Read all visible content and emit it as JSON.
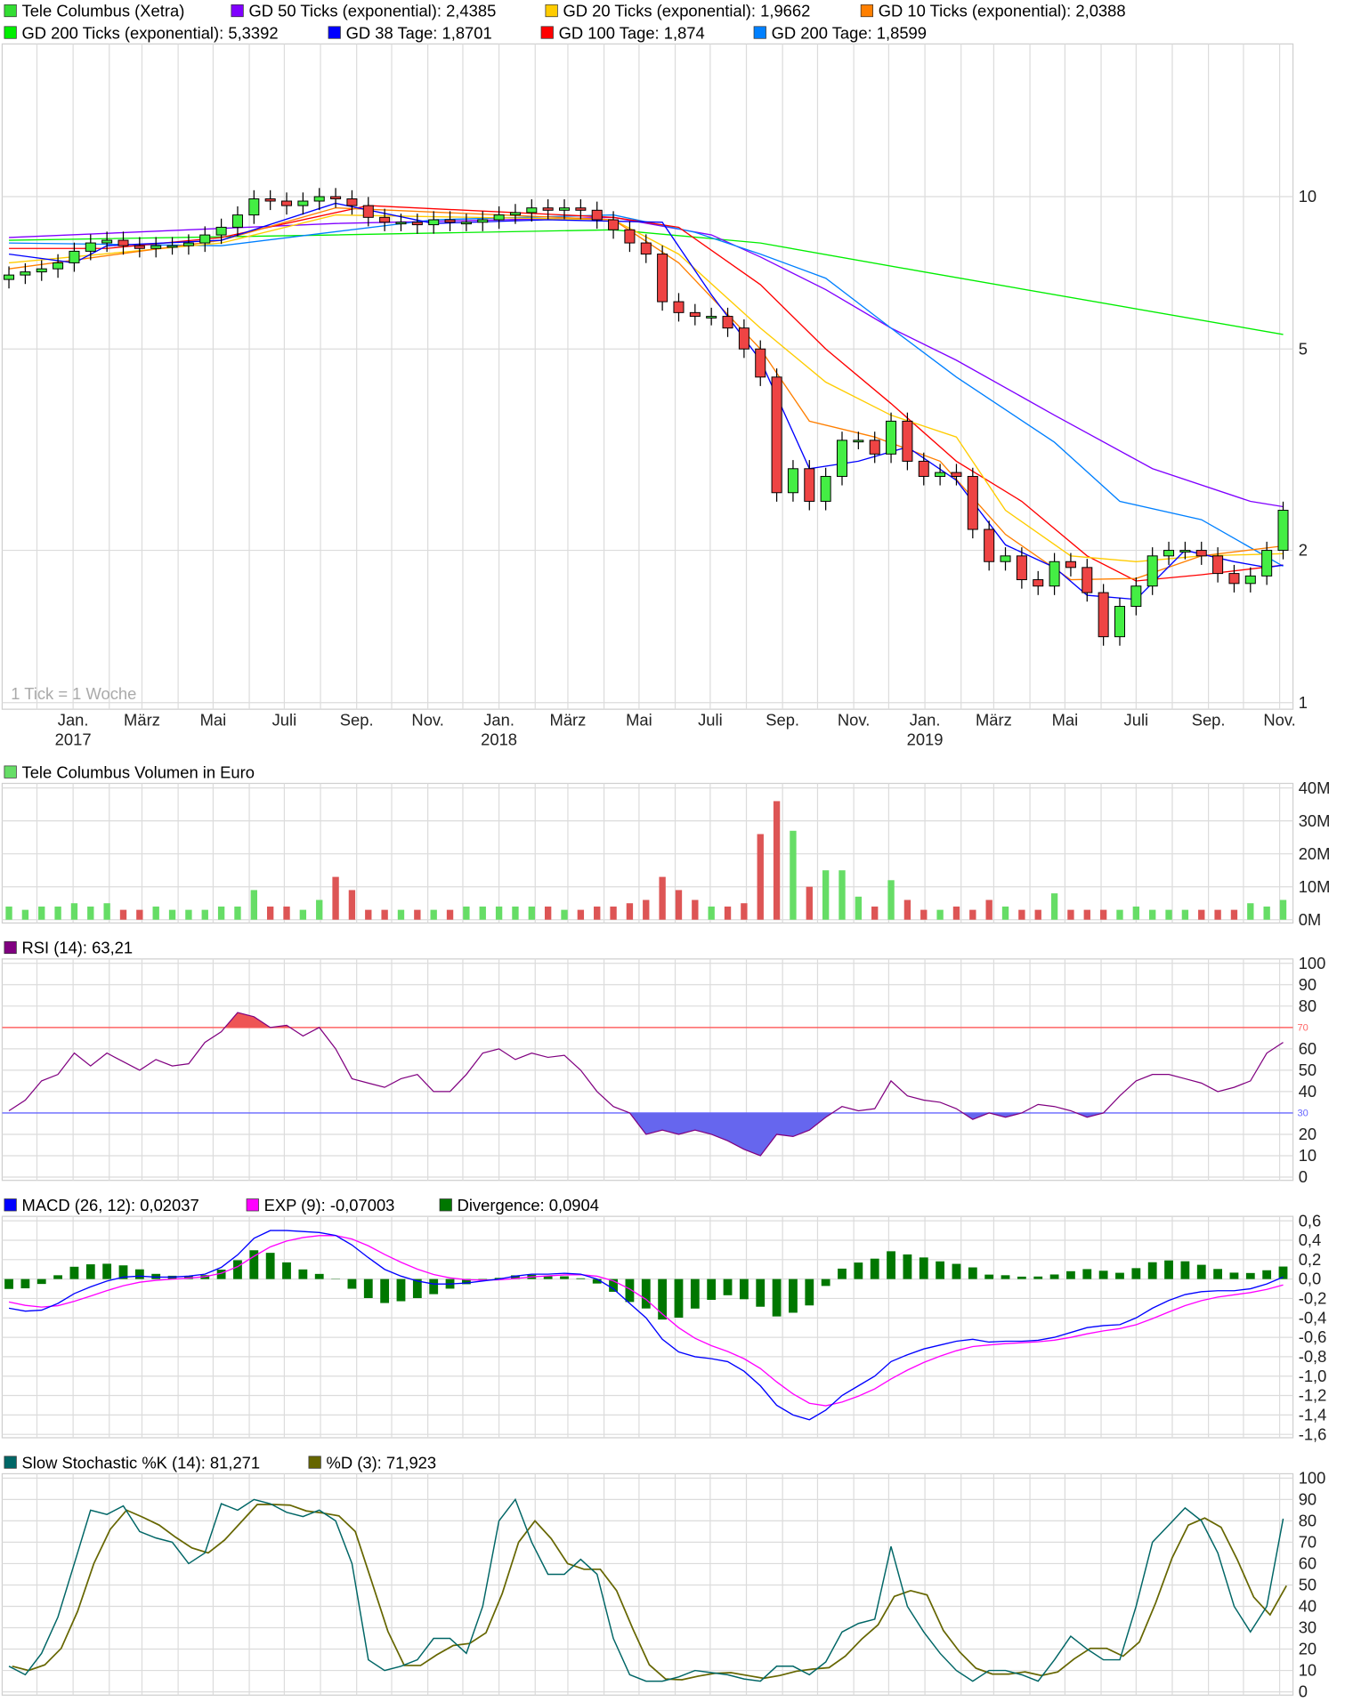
{
  "main_legend": [
    {
      "label": "Tele Columbus (Xetra)",
      "color": "#33dd33"
    },
    {
      "label": "GD 50 Ticks (exponential): 2,4385",
      "color": "#8000ff"
    },
    {
      "label": "GD 20 Ticks (exponential): 1,9662",
      "color": "#ffcc00"
    },
    {
      "label": "GD 10 Ticks (exponential): 2,0388",
      "color": "#ff7f00"
    },
    {
      "label": "GD 200 Ticks (exponential): 5,3392",
      "color": "#00ee00"
    },
    {
      "label": "GD 38 Tage: 1,8701",
      "color": "#0000ff"
    },
    {
      "label": "GD 100 Tage: 1,874",
      "color": "#ff0000"
    },
    {
      "label": "GD 200 Tage: 1,8599",
      "color": "#0080ff"
    }
  ],
  "watermark": "1 Tick = 1 Woche",
  "price_axis": {
    "scale": "log",
    "ticks": [
      "10",
      "5",
      "2",
      "1"
    ],
    "tick_values": [
      10,
      5,
      2,
      1
    ],
    "range": [
      1,
      20
    ]
  },
  "x_axis": {
    "labels": [
      {
        "date": "2017-01-01",
        "label": "Jan.",
        "year": "2017"
      },
      {
        "date": "2017-03-01",
        "label": "März"
      },
      {
        "date": "2017-05-01",
        "label": "Mai"
      },
      {
        "date": "2017-07-01",
        "label": "Juli"
      },
      {
        "date": "2017-09-01",
        "label": "Sep."
      },
      {
        "date": "2017-11-01",
        "label": "Nov."
      },
      {
        "date": "2018-01-01",
        "label": "Jan.",
        "year": "2018"
      },
      {
        "date": "2018-03-01",
        "label": "März"
      },
      {
        "date": "2018-05-01",
        "label": "Mai"
      },
      {
        "date": "2018-07-01",
        "label": "Juli"
      },
      {
        "date": "2018-09-01",
        "label": "Sep."
      },
      {
        "date": "2018-11-01",
        "label": "Nov."
      },
      {
        "date": "2019-01-01",
        "label": "Jan.",
        "year": "2019"
      },
      {
        "date": "2019-03-01",
        "label": "März"
      },
      {
        "date": "2019-05-01",
        "label": "Mai"
      },
      {
        "date": "2019-07-01",
        "label": "Juli"
      },
      {
        "date": "2019-09-01",
        "label": "Sep."
      },
      {
        "date": "2019-11-01",
        "label": "Nov."
      }
    ]
  },
  "chart_data": {
    "type": "candlestick",
    "up_color": "#44ee44",
    "down_color": "#ee4444",
    "dates": [
      "2016-11-07",
      "2016-11-21",
      "2016-12-05",
      "2016-12-19",
      "2017-01-02",
      "2017-01-16",
      "2017-01-30",
      "2017-02-13",
      "2017-02-27",
      "2017-03-13",
      "2017-03-27",
      "2017-04-10",
      "2017-04-24",
      "2017-05-08",
      "2017-05-22",
      "2017-06-05",
      "2017-06-19",
      "2017-07-03",
      "2017-07-17",
      "2017-07-31",
      "2017-08-14",
      "2017-08-28",
      "2017-09-11",
      "2017-09-25",
      "2017-10-09",
      "2017-10-23",
      "2017-11-06",
      "2017-11-20",
      "2017-12-04",
      "2017-12-18",
      "2018-01-01",
      "2018-01-15",
      "2018-01-29",
      "2018-02-12",
      "2018-02-26",
      "2018-03-12",
      "2018-03-26",
      "2018-04-09",
      "2018-04-23",
      "2018-05-07",
      "2018-05-21",
      "2018-06-04",
      "2018-06-18",
      "2018-07-02",
      "2018-07-16",
      "2018-07-30",
      "2018-08-13",
      "2018-08-27",
      "2018-09-10",
      "2018-09-24",
      "2018-10-08",
      "2018-10-22",
      "2018-11-05",
      "2018-11-19",
      "2018-12-03",
      "2018-12-17",
      "2018-12-31",
      "2019-01-14",
      "2019-01-28",
      "2019-02-11",
      "2019-02-25",
      "2019-03-11",
      "2019-03-25",
      "2019-04-08",
      "2019-04-22",
      "2019-05-06",
      "2019-05-20",
      "2019-06-03",
      "2019-06-17",
      "2019-07-01",
      "2019-07-15",
      "2019-07-29",
      "2019-08-12",
      "2019-08-26",
      "2019-09-09",
      "2019-09-23",
      "2019-10-07",
      "2019-10-21",
      "2019-11-04"
    ],
    "close": [
      7.0,
      7.1,
      7.2,
      7.4,
      7.8,
      8.1,
      8.2,
      8.0,
      7.9,
      8.0,
      8.0,
      8.1,
      8.4,
      8.7,
      9.2,
      9.9,
      9.8,
      9.6,
      9.8,
      10.0,
      9.9,
      9.6,
      9.1,
      8.9,
      8.9,
      8.8,
      9.0,
      8.9,
      8.9,
      9.0,
      9.2,
      9.3,
      9.5,
      9.4,
      9.5,
      9.4,
      9.0,
      8.6,
      8.1,
      7.7,
      6.2,
      5.9,
      5.8,
      5.8,
      5.5,
      5.0,
      4.4,
      2.6,
      2.9,
      2.5,
      2.8,
      3.3,
      3.3,
      3.1,
      3.6,
      3.0,
      2.8,
      2.85,
      2.8,
      2.2,
      1.9,
      1.95,
      1.75,
      1.7,
      1.9,
      1.85,
      1.65,
      1.35,
      1.55,
      1.7,
      1.95,
      2.0,
      2.0,
      1.95,
      1.8,
      1.72,
      1.78,
      2.0,
      2.4
    ],
    "moving_averages": [
      {
        "name": "GD 200 Ticks (exponential)",
        "color": "#00ee00",
        "points": [
          [
            "2016-11-07",
            8.2
          ],
          [
            "2017-08-14",
            8.4
          ],
          [
            "2018-04-09",
            8.6
          ],
          [
            "2018-08-13",
            8.1
          ],
          [
            "2018-12-31",
            7.1
          ],
          [
            "2019-11-04",
            5.34
          ]
        ]
      },
      {
        "name": "GD 50 Ticks (exponential)",
        "color": "#8000ff",
        "points": [
          [
            "2016-11-07",
            8.3
          ],
          [
            "2017-08-14",
            8.85
          ],
          [
            "2018-04-09",
            9.1
          ],
          [
            "2018-07-02",
            8.4
          ],
          [
            "2018-08-13",
            7.6
          ],
          [
            "2018-10-08",
            6.55
          ],
          [
            "2018-12-03",
            5.5
          ],
          [
            "2019-01-28",
            4.75
          ],
          [
            "2019-04-22",
            3.7
          ],
          [
            "2019-07-15",
            2.9
          ],
          [
            "2019-10-07",
            2.5
          ],
          [
            "2019-11-04",
            2.44
          ]
        ]
      },
      {
        "name": "GD 200 Tage",
        "color": "#0080ff",
        "points": [
          [
            "2016-11-07",
            8.1
          ],
          [
            "2017-05-08",
            8.0
          ],
          [
            "2017-11-06",
            9.0
          ],
          [
            "2018-04-09",
            9.2
          ],
          [
            "2018-06-18",
            8.5
          ],
          [
            "2018-08-13",
            7.7
          ],
          [
            "2018-10-08",
            6.9
          ],
          [
            "2018-12-03",
            5.5
          ],
          [
            "2019-01-28",
            4.4
          ],
          [
            "2019-04-22",
            3.27
          ],
          [
            "2019-06-17",
            2.5
          ],
          [
            "2019-08-26",
            2.3
          ],
          [
            "2019-11-04",
            1.86
          ]
        ]
      },
      {
        "name": "GD 100 Tage",
        "color": "#ff0000",
        "points": [
          [
            "2016-11-07",
            7.9
          ],
          [
            "2017-01-30",
            7.9
          ],
          [
            "2017-05-08",
            8.3
          ],
          [
            "2017-09-11",
            9.6
          ],
          [
            "2018-04-09",
            9.1
          ],
          [
            "2018-06-04",
            8.7
          ],
          [
            "2018-08-13",
            6.7
          ],
          [
            "2018-10-08",
            5.0
          ],
          [
            "2018-12-03",
            3.9
          ],
          [
            "2019-01-28",
            3.0
          ],
          [
            "2019-03-25",
            2.5
          ],
          [
            "2019-05-20",
            1.95
          ],
          [
            "2019-07-01",
            1.74
          ],
          [
            "2019-08-26",
            1.79
          ],
          [
            "2019-11-04",
            1.87
          ]
        ]
      },
      {
        "name": "GD 20 Ticks (exponential)",
        "color": "#ffcc00",
        "points": [
          [
            "2016-11-07",
            7.4
          ],
          [
            "2017-05-08",
            8.1
          ],
          [
            "2017-08-14",
            9.2
          ],
          [
            "2018-04-09",
            9.0
          ],
          [
            "2018-06-04",
            7.7
          ],
          [
            "2018-08-13",
            5.5
          ],
          [
            "2018-10-08",
            4.3
          ],
          [
            "2018-12-03",
            3.7
          ],
          [
            "2019-01-28",
            3.35
          ],
          [
            "2019-03-11",
            2.4
          ],
          [
            "2019-05-06",
            1.95
          ],
          [
            "2019-07-01",
            1.9
          ],
          [
            "2019-08-26",
            1.95
          ],
          [
            "2019-11-04",
            1.97
          ]
        ]
      },
      {
        "name": "GD 10 Ticks (exponential)",
        "color": "#ff7f00",
        "points": [
          [
            "2016-11-07",
            7.2
          ],
          [
            "2017-05-08",
            8.2
          ],
          [
            "2017-08-14",
            9.5
          ],
          [
            "2018-04-09",
            9.0
          ],
          [
            "2018-06-04",
            7.4
          ],
          [
            "2018-08-13",
            5.0
          ],
          [
            "2018-09-24",
            3.6
          ],
          [
            "2018-11-19",
            3.35
          ],
          [
            "2019-01-14",
            3.0
          ],
          [
            "2019-03-11",
            2.15
          ],
          [
            "2019-05-06",
            1.75
          ],
          [
            "2019-07-01",
            1.76
          ],
          [
            "2019-08-26",
            1.95
          ],
          [
            "2019-11-04",
            2.04
          ]
        ]
      },
      {
        "name": "GD 38 Tage",
        "color": "#0000ff",
        "points": [
          [
            "2016-11-07",
            7.7
          ],
          [
            "2017-01-02",
            7.4
          ],
          [
            "2017-01-30",
            8.0
          ],
          [
            "2017-05-08",
            8.2
          ],
          [
            "2017-08-14",
            9.7
          ],
          [
            "2017-11-06",
            8.85
          ],
          [
            "2018-02-12",
            9.0
          ],
          [
            "2018-05-21",
            8.9
          ],
          [
            "2018-07-02",
            6.4
          ],
          [
            "2018-08-13",
            4.75
          ],
          [
            "2018-09-24",
            2.9
          ],
          [
            "2018-11-05",
            3.0
          ],
          [
            "2018-12-17",
            3.2
          ],
          [
            "2019-01-28",
            2.75
          ],
          [
            "2019-03-11",
            2.05
          ],
          [
            "2019-04-22",
            1.85
          ],
          [
            "2019-05-20",
            1.63
          ],
          [
            "2019-07-01",
            1.6
          ],
          [
            "2019-08-12",
            2.0
          ],
          [
            "2019-09-23",
            1.9
          ],
          [
            "2019-10-21",
            1.85
          ],
          [
            "2019-11-04",
            1.87
          ]
        ]
      }
    ],
    "volume": {
      "title": "Tele Columbus Volumen in Euro",
      "color": "#66dd66",
      "ticks": [
        "40M",
        "30M",
        "20M",
        "10M",
        "0M"
      ],
      "unit": "M",
      "range": [
        0,
        40
      ],
      "values": [
        4,
        3,
        4,
        4,
        5,
        4,
        5,
        3,
        3,
        4,
        3,
        3,
        3,
        4,
        4,
        9,
        4,
        4,
        3,
        6,
        13,
        9,
        3,
        3,
        3,
        3,
        3,
        3,
        4,
        4,
        4,
        4,
        4,
        4,
        3,
        3,
        4,
        4,
        5,
        6,
        13,
        9,
        6,
        4,
        4,
        5,
        26,
        36,
        27,
        10,
        15,
        15,
        7,
        4,
        12,
        6,
        3,
        3,
        4,
        3,
        6,
        4,
        3,
        3,
        8,
        3,
        3,
        3,
        3,
        4,
        3,
        3,
        3,
        3,
        3,
        3,
        5,
        4,
        6
      ]
    },
    "rsi": {
      "title": "RSI (14): 63,21",
      "color": "#800080",
      "ticks": [
        "100",
        "90",
        "80",
        "60",
        "50",
        "40",
        "20",
        "10",
        "0"
      ],
      "tick_values": [
        100,
        90,
        80,
        60,
        50,
        40,
        20,
        10,
        0
      ],
      "upper": {
        "value": 70,
        "label": "70",
        "color": "#ff6666"
      },
      "lower": {
        "value": 30,
        "label": "30",
        "color": "#6666ff"
      },
      "values": [
        31,
        36,
        45,
        48,
        58,
        52,
        58,
        54,
        50,
        55,
        52,
        53,
        63,
        68,
        77,
        75,
        70,
        71,
        66,
        70,
        60,
        46,
        44,
        42,
        46,
        48,
        40,
        40,
        48,
        58,
        60,
        55,
        58,
        56,
        57,
        50,
        40,
        33,
        30,
        20,
        22,
        20,
        22,
        20,
        17,
        13,
        10,
        20,
        19,
        22,
        28,
        33,
        31,
        32,
        45,
        38,
        36,
        35,
        32,
        27,
        30,
        28,
        30,
        34,
        33,
        31,
        28,
        30,
        38,
        45,
        48,
        48,
        46,
        44,
        40,
        42,
        45,
        58,
        63
      ]
    },
    "macd": {
      "legend": [
        {
          "label": "MACD (26, 12): 0,02037",
          "color": "#0000ff"
        },
        {
          "label": "EXP (9): -0,07003",
          "color": "#ff00ff"
        },
        {
          "label": "Divergence: 0,0904",
          "color": "#007700"
        }
      ],
      "ticks": [
        "0,6",
        "0,4",
        "0,2",
        "0,0",
        "-0,2",
        "-0,4",
        "-0,6",
        "-0,8",
        "-1,0",
        "-1,2",
        "-1,4",
        "-1,6"
      ],
      "range": [
        -1.6,
        0.6
      ],
      "values": [
        -0.3,
        -0.33,
        -0.32,
        -0.25,
        -0.15,
        -0.08,
        -0.02,
        0.02,
        0.03,
        0.02,
        0.02,
        0.03,
        0.05,
        0.12,
        0.25,
        0.42,
        0.5,
        0.5,
        0.49,
        0.48,
        0.45,
        0.35,
        0.22,
        0.1,
        0.03,
        -0.02,
        -0.05,
        -0.05,
        -0.04,
        -0.02,
        0.0,
        0.03,
        0.05,
        0.05,
        0.06,
        0.05,
        0.0,
        -0.1,
        -0.25,
        -0.4,
        -0.62,
        -0.75,
        -0.8,
        -0.82,
        -0.85,
        -0.95,
        -1.1,
        -1.3,
        -1.4,
        -1.45,
        -1.35,
        -1.2,
        -1.1,
        -1.0,
        -0.85,
        -0.78,
        -0.72,
        -0.68,
        -0.64,
        -0.62,
        -0.65,
        -0.64,
        -0.64,
        -0.63,
        -0.6,
        -0.55,
        -0.5,
        -0.48,
        -0.47,
        -0.4,
        -0.3,
        -0.22,
        -0.16,
        -0.13,
        -0.12,
        -0.12,
        -0.1,
        -0.05,
        0.02
      ]
    },
    "stochastic": {
      "legend": [
        {
          "label": "Slow Stochastic %K (14): 81,271",
          "color": "#006666"
        },
        {
          "label": "%D (3): 71,923",
          "color": "#666600"
        }
      ],
      "ticks": [
        "100",
        "90",
        "80",
        "70",
        "60",
        "50",
        "40",
        "30",
        "20",
        "10",
        "0"
      ],
      "k_values": [
        12,
        8,
        18,
        35,
        60,
        85,
        83,
        87,
        75,
        72,
        70,
        60,
        65,
        88,
        85,
        90,
        88,
        84,
        82,
        85,
        80,
        60,
        15,
        10,
        12,
        15,
        25,
        25,
        18,
        40,
        80,
        90,
        70,
        55,
        55,
        62,
        55,
        25,
        8,
        5,
        5,
        7,
        10,
        9,
        8,
        6,
        5,
        12,
        12,
        8,
        14,
        28,
        32,
        34,
        68,
        40,
        28,
        18,
        10,
        5,
        10,
        10,
        8,
        5,
        15,
        26,
        20,
        15,
        15,
        40,
        70,
        78,
        86,
        80,
        65,
        40,
        28,
        40,
        81
      ]
    }
  }
}
